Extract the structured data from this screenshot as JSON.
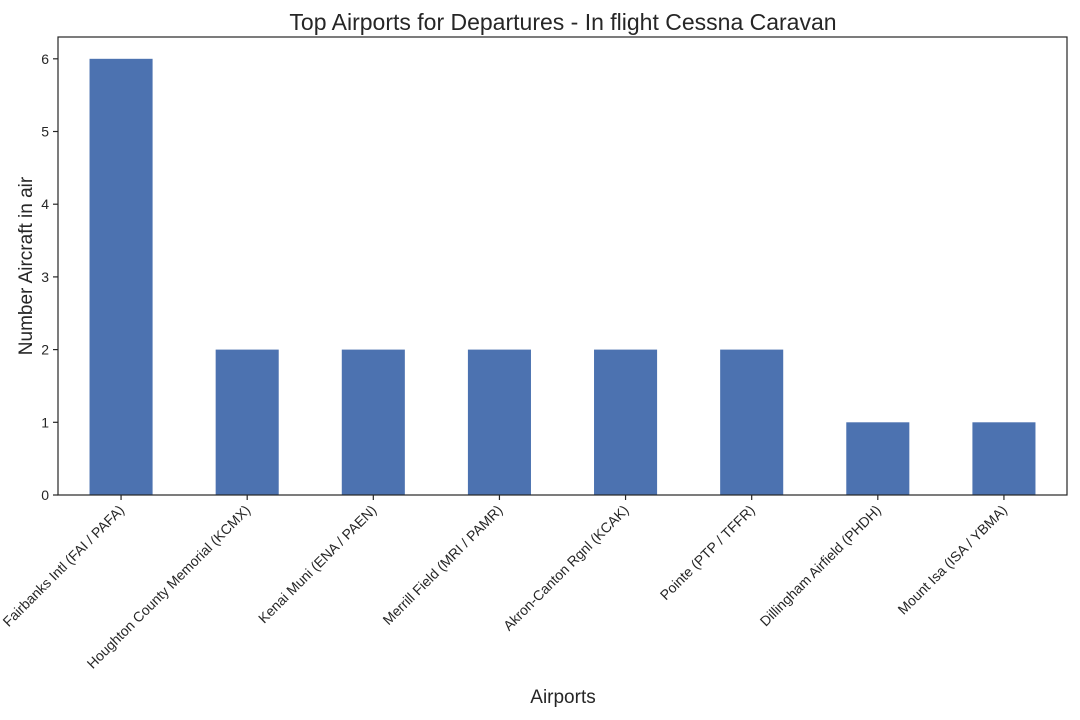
{
  "chart_data": {
    "type": "bar",
    "title": "Top Airports for Departures - In flight Cessna Caravan",
    "xlabel": "Airports",
    "ylabel": "Number Aircraft in air",
    "categories": [
      "Fairbanks Intl (FAI / PAFA)",
      "Houghton County Memorial (KCMX)",
      "Kenai Muni (ENA / PAEN)",
      "Merrill Field (MRI / PAMR)",
      "Akron-Canton Rgnl (KCAK)",
      "Pointe (PTP / TFFR)",
      "Dillingham Airfield (PHDH)",
      "Mount Isa (ISA / YBMA)"
    ],
    "values": [
      6,
      2,
      2,
      2,
      2,
      2,
      1,
      1
    ],
    "ylim": [
      0,
      6.3
    ],
    "yticks": [
      0,
      1,
      2,
      3,
      4,
      5,
      6
    ],
    "grid": false,
    "legend": "none",
    "colors": {
      "bar": "#4c72b0",
      "axes": "#262626",
      "text": "#262626",
      "background": "#ffffff"
    }
  }
}
